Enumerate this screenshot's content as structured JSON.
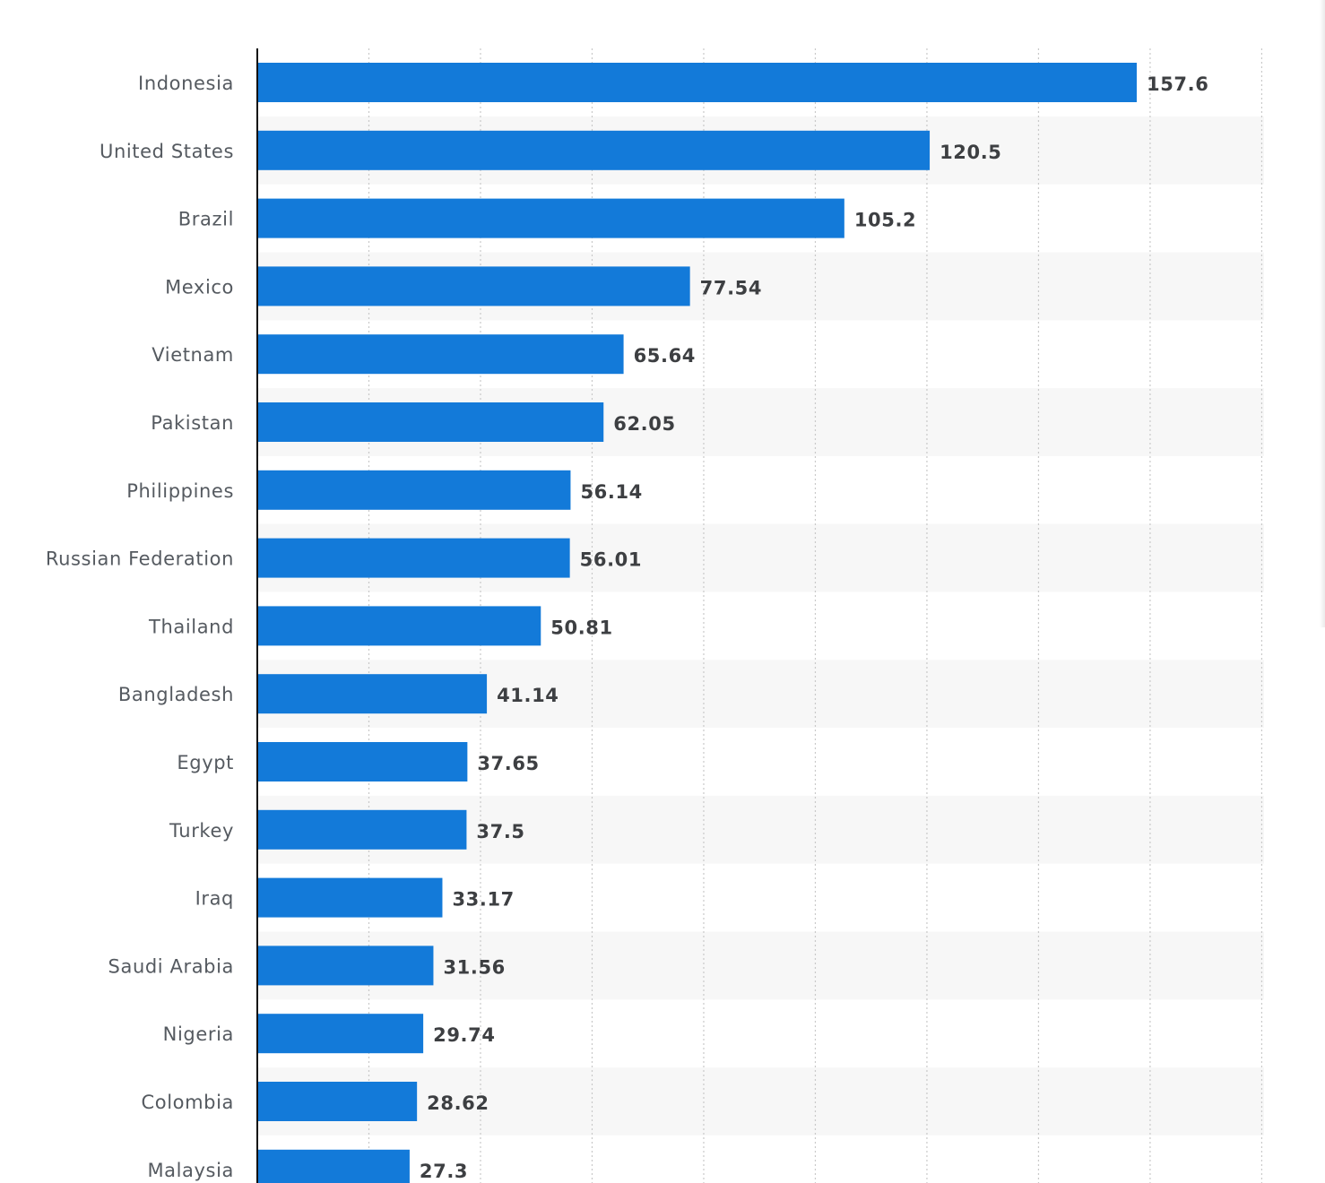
{
  "chart_data": {
    "type": "bar",
    "orientation": "horizontal",
    "categories": [
      "Indonesia",
      "United States",
      "Brazil",
      "Mexico",
      "Vietnam",
      "Pakistan",
      "Philippines",
      "Russian Federation",
      "Thailand",
      "Bangladesh",
      "Egypt",
      "Turkey",
      "Iraq",
      "Saudi Arabia",
      "Nigeria",
      "Colombia",
      "Malaysia"
    ],
    "values": [
      157.6,
      120.5,
      105.2,
      77.54,
      65.64,
      62.05,
      56.14,
      56.01,
      50.81,
      41.14,
      37.65,
      37.5,
      33.17,
      31.56,
      29.74,
      28.62,
      27.3
    ],
    "value_labels": [
      "157.6",
      "120.5",
      "105.2",
      "77.54",
      "65.64",
      "62.05",
      "56.14",
      "56.01",
      "50.81",
      "41.14",
      "37.65",
      "37.5",
      "33.17",
      "31.56",
      "29.74",
      "28.62",
      "27.3"
    ],
    "xlim": [
      0,
      180
    ],
    "x_gridline_step": 20,
    "grid": true,
    "bar_color": "#137ad9",
    "alternate_row_color": "#f7f7f7",
    "title": "",
    "xlabel": "",
    "ylabel": ""
  }
}
